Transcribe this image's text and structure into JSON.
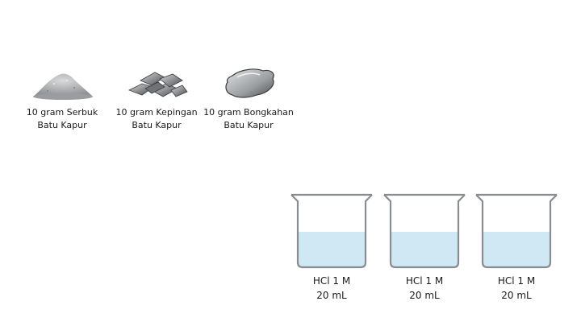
{
  "samples": [
    {
      "icon": "powder-pile-icon",
      "line1": "10 gram Serbuk",
      "line2": "Batu Kapur"
    },
    {
      "icon": "flakes-icon",
      "line1": "10 gram Kepingan",
      "line2": "Batu Kapur"
    },
    {
      "icon": "chunk-icon",
      "line1": "10 gram Bongkahan",
      "line2": "Batu Kapur"
    }
  ],
  "beakers": [
    {
      "line1": "HCl 1 M",
      "line2": "20 mL"
    },
    {
      "line1": "HCl 1 M",
      "line2": "20 mL"
    },
    {
      "line1": "HCl 1 M",
      "line2": "20 mL"
    }
  ],
  "colors": {
    "liquid": "#cfe8f3",
    "glass_outline": "#8a8d90",
    "text": "#1a1a1a"
  }
}
